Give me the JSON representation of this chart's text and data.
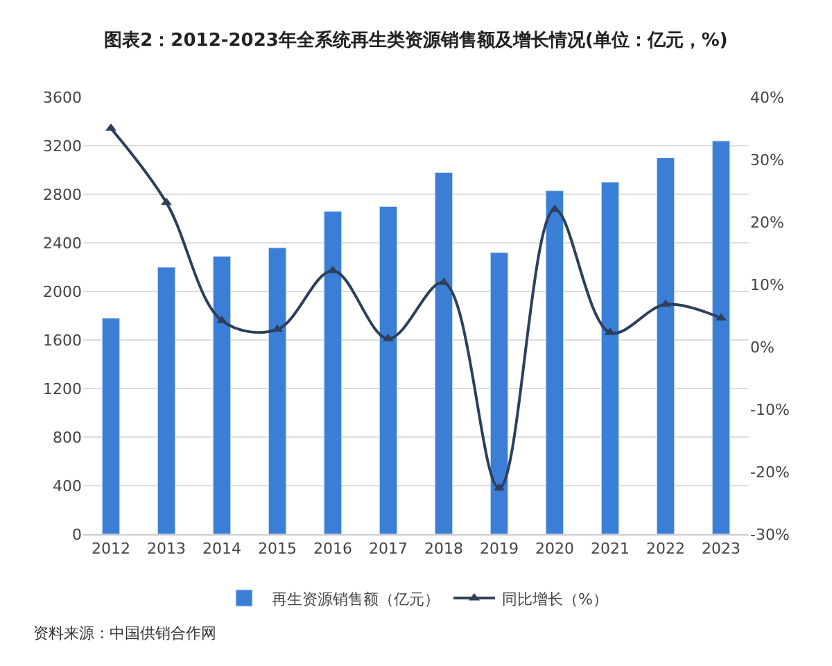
{
  "chart_data": {
    "type": "bar",
    "title": "图表2：2012-2023年全系统再生类资源销售额及增长情况(单位：亿元，%)",
    "categories": [
      "2012",
      "2013",
      "2014",
      "2015",
      "2016",
      "2017",
      "2018",
      "2019",
      "2020",
      "2021",
      "2022",
      "2023"
    ],
    "series": [
      {
        "name": "再生资源销售额（亿元）",
        "color": "#3a7fd5",
        "values": [
          1780,
          2200,
          2290,
          2360,
          2660,
          2700,
          2980,
          2320,
          2830,
          2900,
          3100,
          3240
        ]
      },
      {
        "name": "同比增长（%）",
        "type": "line",
        "axis": "y2",
        "color": "#2e3f5c",
        "marker": "triangle",
        "line_style": "solid",
        "values": [
          35,
          23.1,
          4.2,
          2.8,
          12.2,
          1.3,
          10.3,
          -22.6,
          22,
          2.3,
          6.8,
          4.6
        ]
      }
    ],
    "ylim": [
      0,
      3600
    ],
    "yticks": [
      0,
      400,
      800,
      1200,
      1600,
      2000,
      2400,
      2800,
      3200,
      3600
    ],
    "y2lim": [
      -30,
      40
    ],
    "y2ticks": [
      {
        "value": -30,
        "label": "-30%"
      },
      {
        "value": -20,
        "label": "-20%"
      },
      {
        "value": -10,
        "label": "-10%"
      },
      {
        "value": 0,
        "label": "0%"
      },
      {
        "value": 10,
        "label": "10%"
      },
      {
        "value": 20,
        "label": "20%"
      },
      {
        "value": 30,
        "label": "30%"
      },
      {
        "value": 40,
        "label": "40%"
      }
    ],
    "grid": "y",
    "legend": "bottom",
    "annotations": [
      "资料来源：中国供销合作网"
    ]
  }
}
